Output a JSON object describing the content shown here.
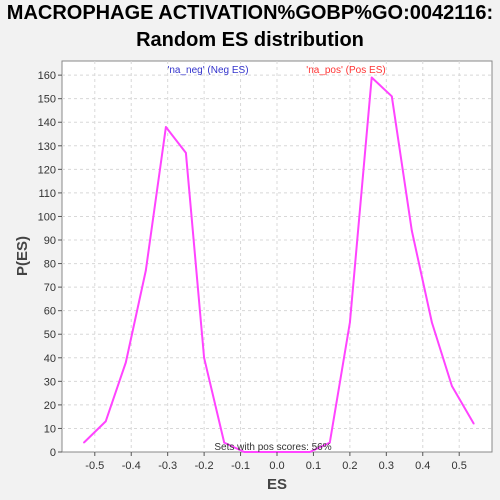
{
  "chart_data": {
    "type": "line",
    "title": [
      "MACROPHAGE ACTIVATION%GOBP%GO:0042116:",
      "Random ES distribution"
    ],
    "xlabel": "ES",
    "ylabel": "P(ES)",
    "xlim": [
      -0.59,
      0.59
    ],
    "ylim": [
      0,
      166
    ],
    "x_ticks": [
      -0.5,
      -0.4,
      -0.3,
      -0.2,
      -0.1,
      0.0,
      0.1,
      0.2,
      0.3,
      0.4,
      0.5
    ],
    "x_tick_labels": [
      "-0.5",
      "-0.4",
      "-0.3",
      "-0.2",
      "-0.1",
      "0.0",
      "0.1",
      "0.2",
      "0.3",
      "0.4",
      "0.5"
    ],
    "y_ticks": [
      0,
      10,
      20,
      30,
      40,
      50,
      60,
      70,
      80,
      90,
      100,
      110,
      120,
      130,
      140,
      150,
      160
    ],
    "y_tick_labels": [
      "0",
      "10",
      "20",
      "30",
      "40",
      "50",
      "60",
      "70",
      "80",
      "90",
      "100",
      "110",
      "120",
      "130",
      "140",
      "150",
      "160"
    ],
    "grid": true,
    "series": [
      {
        "color": "#ff44ff",
        "x": [
          -0.53,
          -0.47,
          -0.415,
          -0.36,
          -0.305,
          -0.25,
          -0.2,
          -0.145,
          -0.09,
          0.09,
          0.145,
          0.2,
          0.26,
          0.315,
          0.37,
          0.425,
          0.48,
          0.54
        ],
        "y": [
          4,
          13,
          38,
          77,
          138,
          127,
          40,
          4,
          0,
          0,
          4,
          55,
          159,
          151,
          94,
          55,
          28,
          12
        ]
      }
    ],
    "annotations": {
      "neg_label": "'na_neg' (Neg ES)",
      "neg_color": "#3333cc",
      "pos_label": "'na_pos' (Pos ES)",
      "pos_color": "#ff3333",
      "footer": "Sets with pos scores: 56%"
    }
  }
}
